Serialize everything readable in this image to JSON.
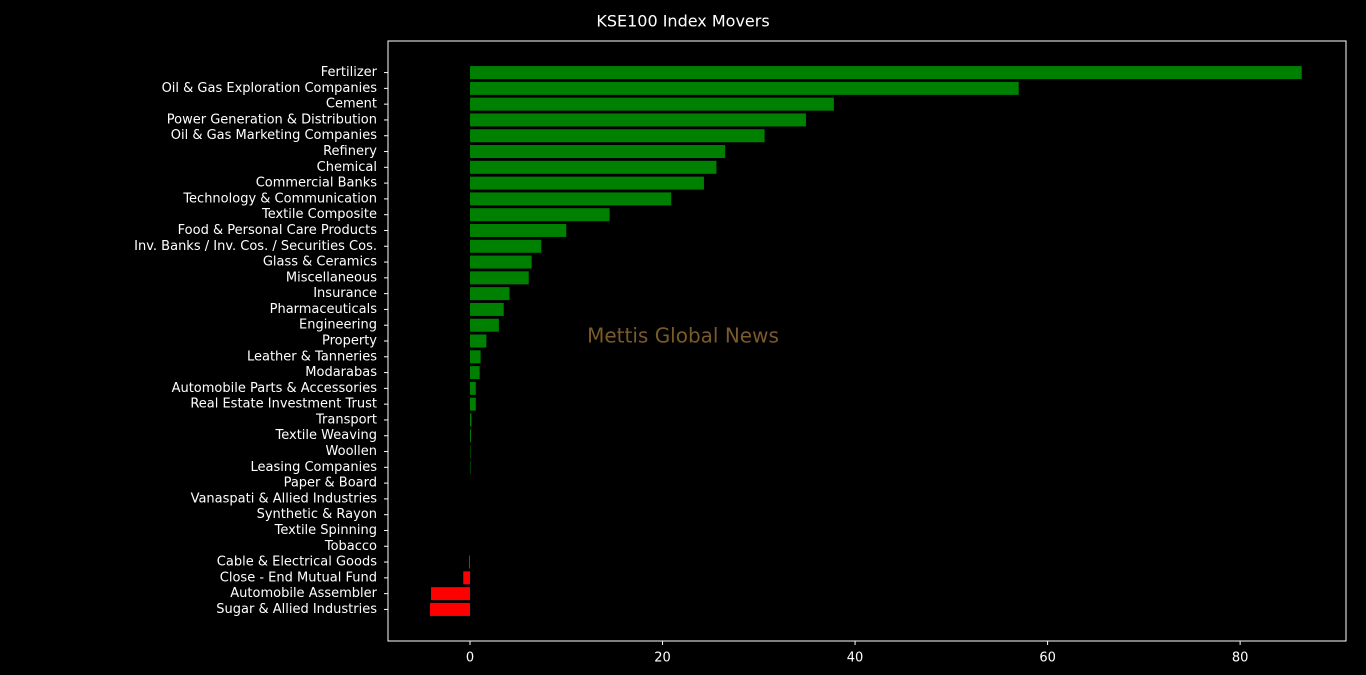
{
  "chart_data": {
    "type": "barh",
    "title": "KSE100 Index Movers",
    "watermark": "Mettis Global News",
    "categories": [
      "Fertilizer",
      "Oil & Gas Exploration Companies",
      "Cement",
      "Power Generation & Distribution",
      "Oil & Gas Marketing Companies",
      "Refinery",
      "Chemical",
      "Commercial Banks",
      "Technology & Communication",
      "Textile Composite",
      "Food & Personal Care Products",
      "Inv. Banks / Inv. Cos. / Securities Cos.",
      "Glass & Ceramics",
      "Miscellaneous",
      "Insurance",
      "Pharmaceuticals",
      "Engineering",
      "Property",
      "Leather & Tanneries",
      "Modarabas",
      "Automobile Parts & Accessories",
      "Real Estate Investment Trust",
      "Transport",
      "Textile Weaving",
      "Woollen",
      "Leasing Companies",
      "Paper & Board",
      "Vanaspati & Allied Industries",
      "Synthetic & Rayon",
      "Textile Spinning",
      "Tobacco",
      "Cable & Electrical Goods",
      "Close - End Mutual Fund",
      "Automobile Assembler",
      "Sugar & Allied Industries"
    ],
    "values": [
      86.4,
      57.0,
      37.8,
      34.9,
      30.6,
      26.5,
      25.6,
      24.3,
      20.9,
      14.5,
      10.0,
      7.4,
      6.4,
      6.1,
      4.1,
      3.5,
      3.0,
      1.7,
      1.1,
      1.0,
      0.6,
      0.6,
      0.15,
      0.1,
      0.05,
      0.05,
      0,
      0,
      0,
      0,
      0,
      -0.1,
      -0.7,
      -4.05,
      -4.15
    ],
    "color_positive": "#008000",
    "color_negative": "#ff0000",
    "xlim": [
      -8.52,
      91.0
    ],
    "xticks": [
      0,
      20,
      40,
      60,
      80
    ]
  }
}
